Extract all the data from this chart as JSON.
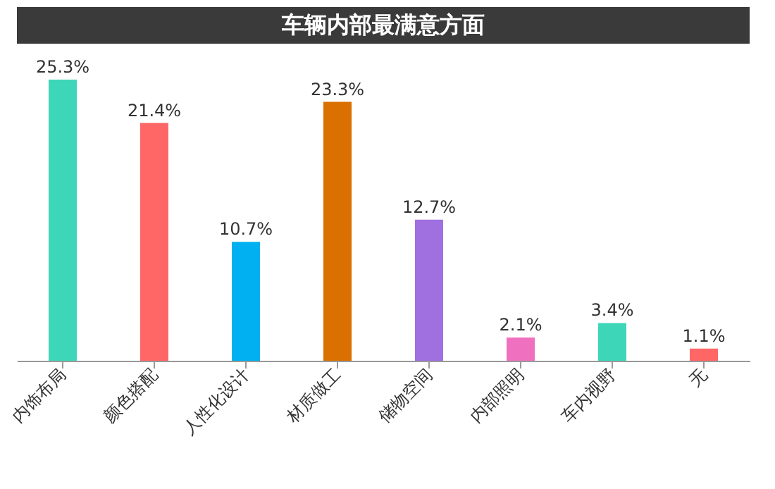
{
  "chart_data": {
    "type": "bar",
    "title": "车辆内部最满意方面",
    "categories": [
      "内饰布局",
      "颜色搭配",
      "人性化设计",
      "材质做工",
      "储物空间",
      "内部照明",
      "车内视野",
      "无"
    ],
    "values": [
      25.3,
      21.4,
      10.7,
      23.3,
      12.7,
      2.1,
      3.4,
      1.1
    ],
    "colors": [
      "#3dd6b8",
      "#ff6666",
      "#00b0f0",
      "#d97000",
      "#a070e0",
      "#f070c0",
      "#3dd6b8",
      "#ff6666"
    ],
    "value_labels": [
      "25.3%",
      "21.4%",
      "10.7%",
      "23.3%",
      "12.7%",
      "2.1%",
      "3.4%",
      "1.1%"
    ],
    "grid": false
  }
}
